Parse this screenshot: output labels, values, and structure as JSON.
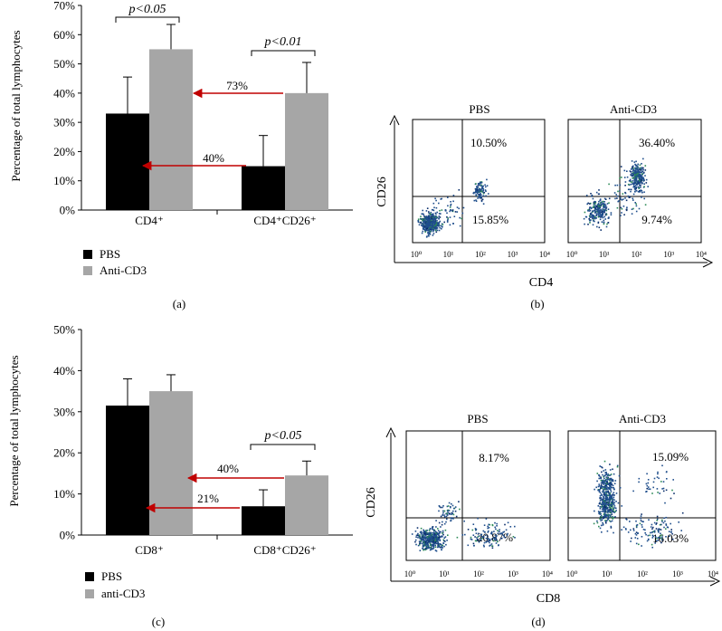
{
  "colors": {
    "pbs": "#000000",
    "anti": "#a6a6a6",
    "arrow": "#c00000",
    "dots": "#1f4e8c"
  },
  "chart_data": [
    {
      "panel": "(a)",
      "type": "bar",
      "ylabel": "Percentage of total lymphocytes",
      "ylim": [
        0,
        70
      ],
      "yticks": [
        "0%",
        "10%",
        "20%",
        "30%",
        "40%",
        "50%",
        "60%",
        "70%"
      ],
      "categories": [
        "CD4⁺",
        "CD4⁺CD26⁺"
      ],
      "series": [
        {
          "name": "PBS",
          "values": [
            33,
            15
          ],
          "errors": [
            12.5,
            10.5
          ]
        },
        {
          "name": "Anti-CD3",
          "values": [
            55,
            40
          ],
          "errors": [
            8.5,
            10.5
          ]
        }
      ],
      "significance": [
        "p<0.05",
        "p<0.01"
      ],
      "arrow_labels": [
        "73%",
        "40%"
      ],
      "legend": "bottom-left",
      "grid": false
    },
    {
      "panel": "(c)",
      "type": "bar",
      "ylabel": "Percentage of total lymphocytes",
      "ylim": [
        0,
        50
      ],
      "yticks": [
        "0%",
        "10%",
        "20%",
        "30%",
        "40%",
        "50%"
      ],
      "categories": [
        "CD8⁺",
        "CD8⁺CD26⁺"
      ],
      "series": [
        {
          "name": "PBS",
          "values": [
            31.5,
            7
          ],
          "errors": [
            6.5,
            4
          ]
        },
        {
          "name": "anti-CD3",
          "values": [
            35,
            14.5
          ],
          "errors": [
            4,
            3.5
          ]
        }
      ],
      "significance": [
        "p<0.05"
      ],
      "arrow_labels": [
        "40%",
        "21%"
      ],
      "legend": "bottom-left",
      "grid": false
    },
    {
      "panel": "(b)",
      "type": "scatter",
      "xlabel": "CD4",
      "ylabel": "CD26",
      "xticks": [
        "10⁰",
        "10¹",
        "10²",
        "10³",
        "10⁴"
      ],
      "plots": [
        {
          "title": "PBS",
          "upper_right": "10.50%",
          "lower_right": "15.85%"
        },
        {
          "title": "Anti-CD3",
          "upper_right": "36.40%",
          "lower_right": "9.74%"
        }
      ]
    },
    {
      "panel": "(d)",
      "type": "scatter",
      "xlabel": "CD8",
      "ylabel": "CD26",
      "xticks": [
        "10⁰",
        "10¹",
        "10²",
        "10³",
        "10⁴"
      ],
      "plots": [
        {
          "title": "PBS",
          "upper_right": "8.17%",
          "lower_right": "20.87%"
        },
        {
          "title": "Anti-CD3",
          "upper_right": "15.09%",
          "lower_right": "16.03%"
        }
      ]
    }
  ]
}
